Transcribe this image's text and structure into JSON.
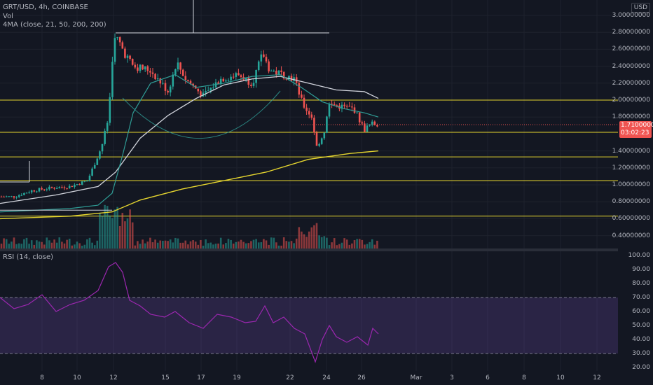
{
  "header": {
    "symbol_line": "GRT/USD, 4h, COINBASE",
    "volume_label": "Vol",
    "ma_label": "4MA (close, 21, 50, 200, 200)",
    "currency": "USD"
  },
  "price_badge": {
    "price": "1.71000000",
    "countdown": "03:02:23"
  },
  "rsi": {
    "label": "RSI (14, close)"
  },
  "price_axis": [
    "3.00000000",
    "2.80000000",
    "2.60000000",
    "2.40000000",
    "2.20000000",
    "2.00000000",
    "1.80000000",
    "1.40000000",
    "1.20000000",
    "1.00000000",
    "0.80000000",
    "0.60000000",
    "0.40000000"
  ],
  "rsi_axis": [
    "100.00",
    "90.00",
    "80.00",
    "70.00",
    "60.00",
    "50.00",
    "40.00",
    "30.00",
    "20.00"
  ],
  "time_axis": [
    "8",
    "10",
    "12",
    "15",
    "17",
    "19",
    "22",
    "24",
    "26",
    "Mar",
    "3",
    "6",
    "8",
    "10",
    "12"
  ],
  "horizontal_levels": [
    2.0,
    1.62,
    1.33,
    1.05,
    0.63
  ],
  "colors": {
    "up": "#26a69a",
    "down": "#ef5350",
    "level": "#e5d52f",
    "ma_white": "#d1d4dc",
    "ma_teal": "#2f9c95",
    "rsi": "#9c27b0"
  },
  "chart_data": {
    "type": "candlestick",
    "price_range": [
      0.3,
      3.1
    ],
    "rsi_range": [
      20,
      100
    ],
    "rsi_band": [
      30,
      70
    ],
    "last_close": 1.71
  }
}
